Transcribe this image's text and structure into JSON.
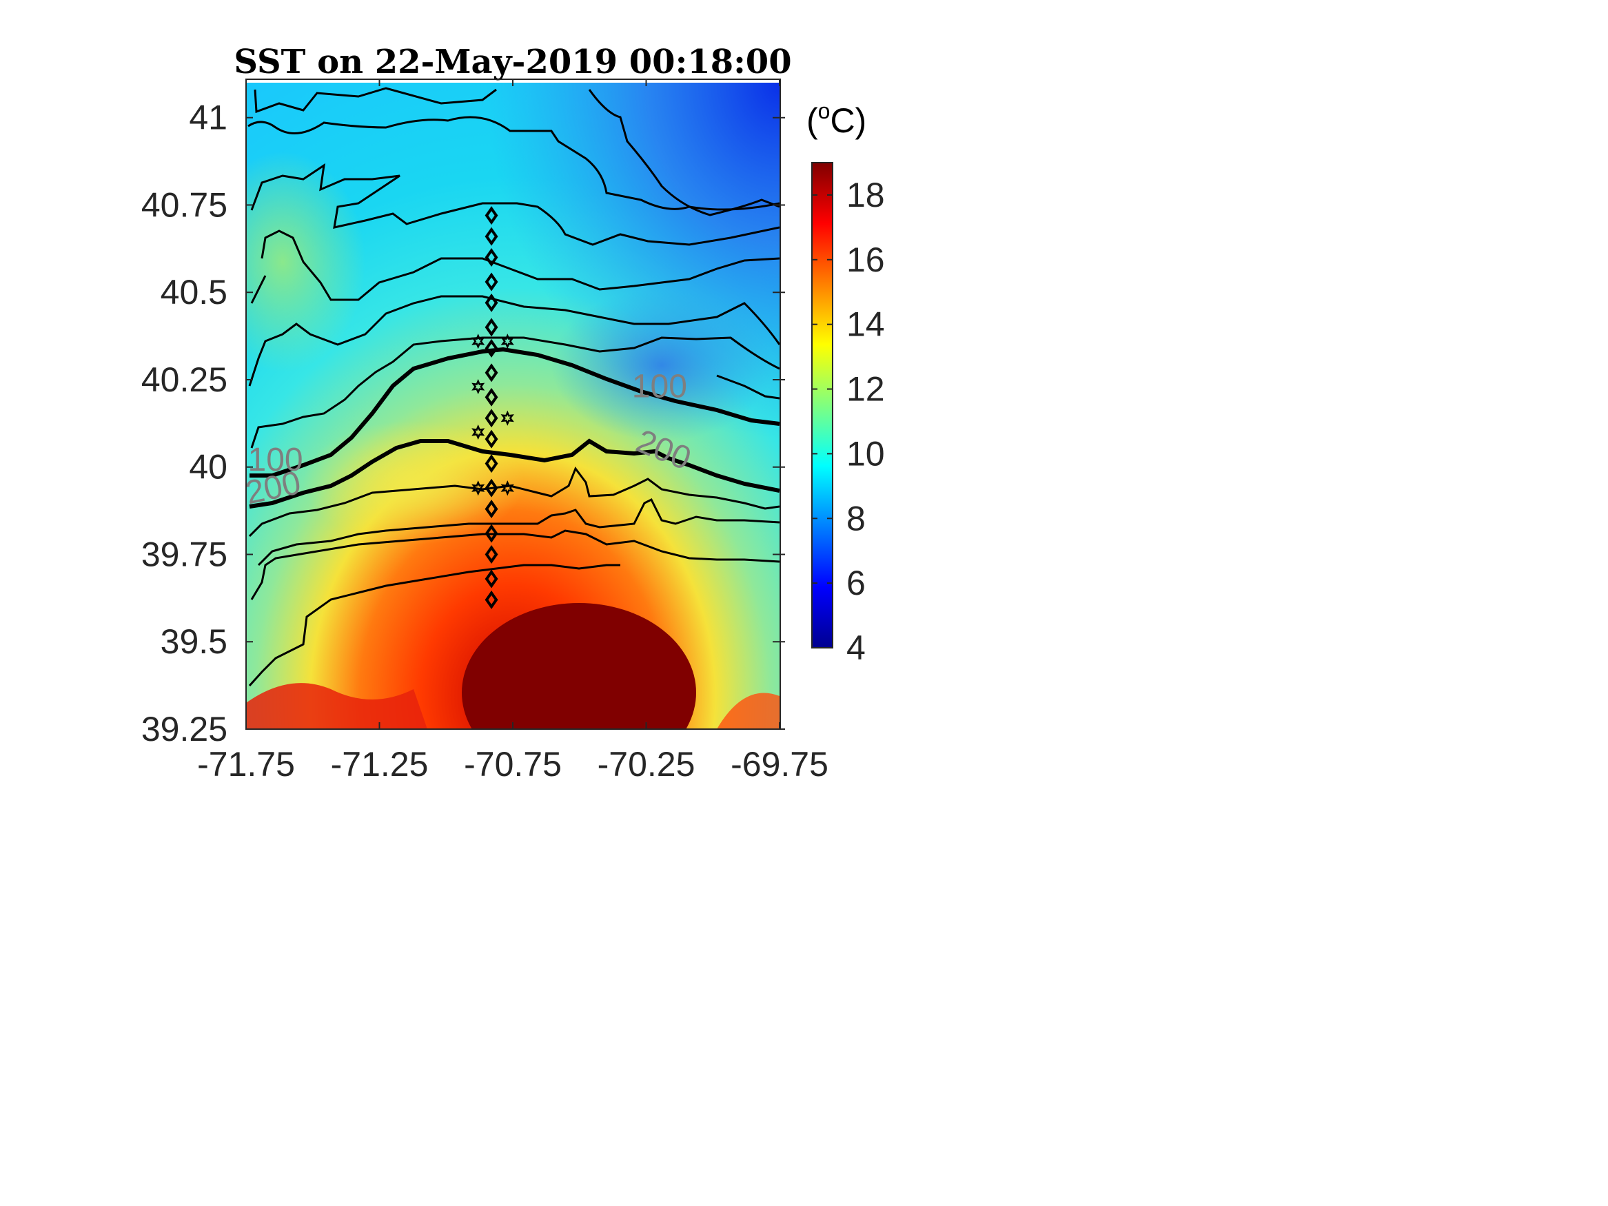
{
  "chart_data": {
    "type": "heatmap",
    "title": "SST on 22-May-2019 00:18:00",
    "xlabel": "",
    "ylabel": "",
    "xlim": [
      -71.75,
      -69.75
    ],
    "ylim": [
      39.25,
      41.1
    ],
    "x_ticks": [
      "-71.75",
      "-71.25",
      "-70.75",
      "-70.25",
      "-69.75"
    ],
    "y_ticks": [
      "41",
      "40.75",
      "40.5",
      "40.25",
      "40",
      "39.75",
      "39.5",
      "39.25"
    ],
    "colorbar": {
      "label": "(°C)",
      "unit_open": "(",
      "unit_sup": "o",
      "unit_close": "C)",
      "range": [
        4,
        19
      ],
      "ticks": [
        "18",
        "16",
        "14",
        "12",
        "10",
        "8",
        "6",
        "4"
      ],
      "colormap": "jet"
    },
    "contour_labels": [
      {
        "text": "100",
        "lon": -71.64,
        "lat": 39.99
      },
      {
        "text": "200",
        "lon": -71.64,
        "lat": 39.91
      },
      {
        "text": "100",
        "lon": -70.2,
        "lat": 40.2
      },
      {
        "text": "200",
        "lon": -70.2,
        "lat": 40.02
      }
    ],
    "isobath_100m": [
      [
        -71.75,
        39.97
      ],
      [
        -71.6,
        39.99
      ],
      [
        -71.45,
        40.05
      ],
      [
        -71.35,
        40.12
      ],
      [
        -71.25,
        40.22
      ],
      [
        -71.15,
        40.28
      ],
      [
        -71.0,
        40.31
      ],
      [
        -70.85,
        40.33
      ],
      [
        -70.75,
        40.33
      ],
      [
        -70.6,
        40.31
      ],
      [
        -70.45,
        40.27
      ],
      [
        -70.3,
        40.22
      ],
      [
        -70.1,
        40.17
      ],
      [
        -69.9,
        40.14
      ],
      [
        -69.75,
        40.12
      ]
    ],
    "isobath_200m": [
      [
        -71.75,
        39.88
      ],
      [
        -71.6,
        39.89
      ],
      [
        -71.45,
        39.93
      ],
      [
        -71.3,
        39.98
      ],
      [
        -71.15,
        40.06
      ],
      [
        -71.0,
        40.07
      ],
      [
        -70.85,
        40.04
      ],
      [
        -70.7,
        40.03
      ],
      [
        -70.55,
        40.02
      ],
      [
        -70.45,
        40.06
      ],
      [
        -70.35,
        40.04
      ],
      [
        -70.2,
        40.04
      ],
      [
        -70.1,
        39.98
      ],
      [
        -69.95,
        39.95
      ],
      [
        -69.75,
        39.93
      ]
    ],
    "stations_diamond": [
      {
        "lon": -70.83,
        "lat": 40.72
      },
      {
        "lon": -70.83,
        "lat": 40.66
      },
      {
        "lon": -70.83,
        "lat": 40.6
      },
      {
        "lon": -70.83,
        "lat": 40.53
      },
      {
        "lon": -70.83,
        "lat": 40.47
      },
      {
        "lon": -70.83,
        "lat": 40.4
      },
      {
        "lon": -70.83,
        "lat": 40.34
      },
      {
        "lon": -70.83,
        "lat": 40.27
      },
      {
        "lon": -70.83,
        "lat": 40.2
      },
      {
        "lon": -70.83,
        "lat": 40.14
      },
      {
        "lon": -70.83,
        "lat": 40.08
      },
      {
        "lon": -70.83,
        "lat": 40.01
      },
      {
        "lon": -70.83,
        "lat": 39.94
      },
      {
        "lon": -70.83,
        "lat": 39.88
      },
      {
        "lon": -70.83,
        "lat": 39.81
      },
      {
        "lon": -70.83,
        "lat": 39.75
      },
      {
        "lon": -70.83,
        "lat": 39.68
      },
      {
        "lon": -70.83,
        "lat": 39.62
      }
    ],
    "stations_star": [
      {
        "lon": -70.88,
        "lat": 40.36
      },
      {
        "lon": -70.77,
        "lat": 40.36
      },
      {
        "lon": -70.88,
        "lat": 40.23
      },
      {
        "lon": -70.77,
        "lat": 40.14
      },
      {
        "lon": -70.88,
        "lat": 40.1
      },
      {
        "lon": -70.88,
        "lat": 39.94
      },
      {
        "lon": -70.77,
        "lat": 39.94
      }
    ]
  }
}
